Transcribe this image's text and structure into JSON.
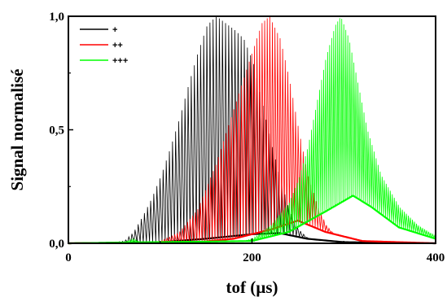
{
  "chart_data": {
    "type": "line",
    "xlabel": "tof (µs)",
    "ylabel": "Signal normalisé",
    "xlim": [
      0,
      400
    ],
    "ylim": [
      0,
      1
    ],
    "x_ticks": [
      0,
      200,
      400
    ],
    "x_tick_labels": [
      "0",
      "200",
      "400"
    ],
    "y_ticks": [
      0,
      0.5,
      1
    ],
    "y_tick_labels": [
      "0,0",
      "0,5",
      "1,0"
    ],
    "legend_position": "top-left inside",
    "grid": false,
    "series": [
      {
        "name": "+",
        "color": "#000000",
        "peak_spacing_us": 3.4,
        "points": [
          [
            0,
            0
          ],
          [
            40,
            0
          ],
          [
            60,
            0.01
          ],
          [
            70,
            0.05
          ],
          [
            80,
            0.12
          ],
          [
            90,
            0.2
          ],
          [
            100,
            0.3
          ],
          [
            110,
            0.42
          ],
          [
            120,
            0.55
          ],
          [
            130,
            0.7
          ],
          [
            140,
            0.84
          ],
          [
            150,
            0.96
          ],
          [
            160,
            1.0
          ],
          [
            170,
            0.97
          ],
          [
            180,
            0.94
          ],
          [
            190,
            0.9
          ],
          [
            200,
            0.8
          ],
          [
            210,
            0.62
          ],
          [
            220,
            0.44
          ],
          [
            230,
            0.28
          ],
          [
            240,
            0.14
          ],
          [
            250,
            0.06
          ],
          [
            260,
            0.02
          ],
          [
            270,
            0
          ],
          [
            400,
            0
          ]
        ],
        "baseline": [
          [
            0,
            0
          ],
          [
            100,
            0.005
          ],
          [
            150,
            0.02
          ],
          [
            200,
            0.04
          ],
          [
            230,
            0.045
          ],
          [
            260,
            0.02
          ],
          [
            300,
            0.005
          ],
          [
            400,
            0
          ]
        ]
      },
      {
        "name": "++",
        "color": "#ff0000",
        "peak_spacing_us": 2.8,
        "points": [
          [
            0,
            0
          ],
          [
            80,
            0
          ],
          [
            100,
            0.01
          ],
          [
            120,
            0.05
          ],
          [
            140,
            0.15
          ],
          [
            160,
            0.35
          ],
          [
            180,
            0.6
          ],
          [
            200,
            0.85
          ],
          [
            210,
            0.97
          ],
          [
            218,
            1.0
          ],
          [
            230,
            0.9
          ],
          [
            240,
            0.72
          ],
          [
            250,
            0.5
          ],
          [
            260,
            0.3
          ],
          [
            270,
            0.17
          ],
          [
            280,
            0.08
          ],
          [
            290,
            0.03
          ],
          [
            310,
            0
          ],
          [
            400,
            0
          ]
        ],
        "baseline": [
          [
            0,
            0
          ],
          [
            140,
            0.005
          ],
          [
            180,
            0.02
          ],
          [
            220,
            0.06
          ],
          [
            250,
            0.1
          ],
          [
            280,
            0.05
          ],
          [
            320,
            0.01
          ],
          [
            400,
            0
          ]
        ]
      },
      {
        "name": "+++",
        "color": "#00ff00",
        "peak_spacing_us": 2.2,
        "points": [
          [
            0,
            0
          ],
          [
            60,
            0.005
          ],
          [
            70,
            0.02
          ],
          [
            80,
            0
          ],
          [
            180,
            0
          ],
          [
            200,
            0.02
          ],
          [
            220,
            0.08
          ],
          [
            240,
            0.18
          ],
          [
            250,
            0.28
          ],
          [
            260,
            0.42
          ],
          [
            270,
            0.62
          ],
          [
            280,
            0.82
          ],
          [
            290,
            0.96
          ],
          [
            296,
            1.0
          ],
          [
            305,
            0.9
          ],
          [
            315,
            0.7
          ],
          [
            325,
            0.5
          ],
          [
            340,
            0.3
          ],
          [
            360,
            0.16
          ],
          [
            380,
            0.08
          ],
          [
            400,
            0.03
          ]
        ],
        "baseline": [
          [
            0,
            0
          ],
          [
            200,
            0.01
          ],
          [
            240,
            0.05
          ],
          [
            280,
            0.14
          ],
          [
            310,
            0.21
          ],
          [
            330,
            0.16
          ],
          [
            360,
            0.07
          ],
          [
            400,
            0.02
          ]
        ]
      }
    ]
  }
}
